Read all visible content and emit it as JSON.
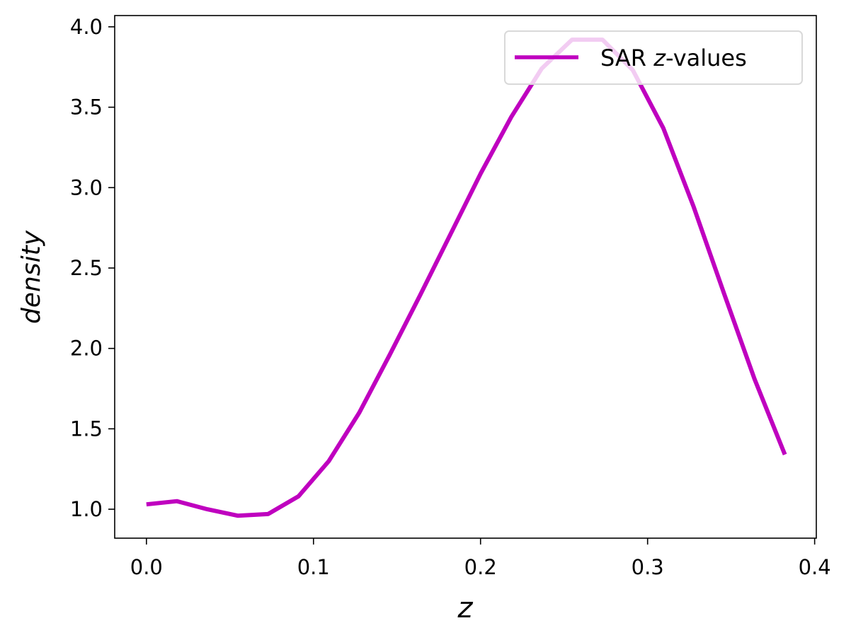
{
  "chart_data": {
    "type": "line",
    "xlabel": "z",
    "ylabel": "density",
    "xlim": [
      -0.019,
      0.401
    ],
    "ylim": [
      0.82,
      4.07
    ],
    "x_ticks": [
      0.0,
      0.1,
      0.2,
      0.3,
      0.4
    ],
    "y_ticks": [
      1.0,
      1.5,
      2.0,
      2.5,
      3.0,
      3.5,
      4.0
    ],
    "x_tick_labels": [
      "0.0",
      "0.1",
      "0.2",
      "0.3",
      "0.4"
    ],
    "y_tick_labels": [
      "1.0",
      "1.5",
      "2.0",
      "2.5",
      "3.0",
      "3.5",
      "4.0"
    ],
    "grid": false,
    "legend_position": "top-right",
    "series": [
      {
        "name": "SAR z-values",
        "legend_prefix": "SAR ",
        "legend_italic": "z",
        "legend_suffix": "-values",
        "color": "#bf00bf",
        "x": [
          0.0,
          0.0182,
          0.0364,
          0.0546,
          0.0728,
          0.091,
          0.1092,
          0.1274,
          0.1456,
          0.1638,
          0.182,
          0.2002,
          0.2184,
          0.2366,
          0.2548,
          0.273,
          0.2912,
          0.3094,
          0.3276,
          0.3458,
          0.364,
          0.3822
        ],
        "y": [
          1.03,
          1.05,
          1.0,
          0.96,
          0.97,
          1.08,
          1.3,
          1.6,
          1.96,
          2.33,
          2.71,
          3.09,
          3.44,
          3.74,
          3.92,
          3.92,
          3.73,
          3.37,
          2.88,
          2.34,
          1.81,
          1.34
        ]
      }
    ]
  }
}
